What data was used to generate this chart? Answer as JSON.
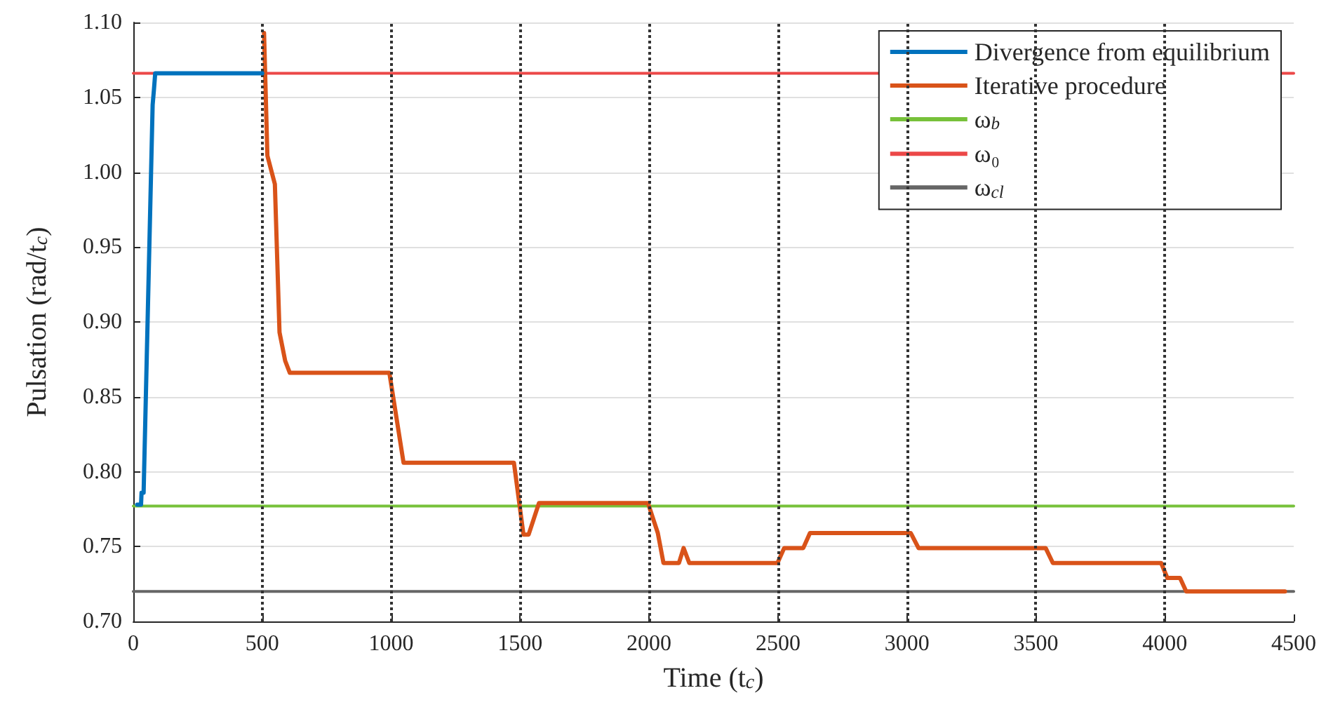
{
  "chart_data": {
    "type": "line",
    "xlabel": "Time (t$_{c}$)",
    "ylabel": "Pulsation (rad/t$_{c}$)",
    "xlim": [
      0,
      4500
    ],
    "xticks": [
      0,
      500,
      1000,
      1500,
      2000,
      2500,
      3000,
      3500,
      4000,
      4500
    ],
    "ylim": [
      0.7,
      1.1
    ],
    "yticks": [
      {
        "value": 0.7,
        "label": "0.70"
      },
      {
        "value": 0.75,
        "label": "0.75"
      },
      {
        "value": 0.8,
        "label": "0.80"
      },
      {
        "value": 0.85,
        "label": "0.85"
      },
      {
        "value": 0.9,
        "label": "0.90"
      },
      {
        "value": 0.95,
        "label": "0.95"
      },
      {
        "value": 1.0,
        "label": "1.00"
      },
      {
        "value": 1.05,
        "label": "1.05"
      },
      {
        "value": 1.1,
        "label": "1.10"
      }
    ],
    "grid": "y",
    "legend": "top right",
    "marker": "none",
    "line_style": "solid",
    "series": [
      {
        "name": "Divergence from equilibrium",
        "color": "#0072bd",
        "x": [
          15,
          30,
          32,
          40,
          75,
          80,
          85,
          500
        ],
        "values": [
          0.778,
          0.778,
          0.786,
          0.786,
          1.045,
          1.055,
          1.066,
          1.066
        ]
      },
      {
        "name": "Iterative procedure",
        "color": "#d95319",
        "x": [
          507,
          520,
          549,
          567,
          589,
          607,
          993,
          1048,
          1476,
          1513,
          1533,
          1573,
          1996,
          2034,
          2056,
          2116,
          2134,
          2156,
          2498,
          2524,
          2598,
          2624,
          3015,
          3045,
          3538,
          3566,
          3986,
          4010,
          4059,
          4083,
          4466
        ],
        "values": [
          1.093,
          1.011,
          0.992,
          0.893,
          0.874,
          0.866,
          0.866,
          0.806,
          0.806,
          0.758,
          0.758,
          0.779,
          0.779,
          0.759,
          0.739,
          0.739,
          0.749,
          0.739,
          0.739,
          0.749,
          0.749,
          0.759,
          0.759,
          0.749,
          0.749,
          0.739,
          0.739,
          0.729,
          0.729,
          0.72,
          0.72
        ]
      },
      {
        "name": "ω$_{b}$",
        "color": "#77c13a",
        "x": [
          0,
          4500
        ],
        "values": [
          0.777,
          0.777
        ]
      },
      {
        "name": "ω₀",
        "color": "#ec4848",
        "x": [
          0,
          4500
        ],
        "values": [
          1.066,
          1.066
        ]
      },
      {
        "name": "ω$_{cl}$",
        "color": "#666666",
        "x": [
          0,
          4500
        ],
        "values": [
          0.72,
          0.72
        ]
      }
    ],
    "ref_lines": [
      {
        "axis": "x",
        "value": 500,
        "color": "#333333",
        "line_style": "dotted"
      },
      {
        "axis": "x",
        "value": 1000,
        "color": "#333333",
        "line_style": "dotted"
      },
      {
        "axis": "x",
        "value": 1500,
        "color": "#333333",
        "line_style": "dotted"
      },
      {
        "axis": "x",
        "value": 2000,
        "color": "#333333",
        "line_style": "dotted"
      },
      {
        "axis": "x",
        "value": 2500,
        "color": "#333333",
        "line_style": "dotted"
      },
      {
        "axis": "x",
        "value": 3000,
        "color": "#333333",
        "line_style": "dotted"
      },
      {
        "axis": "x",
        "value": 3500,
        "color": "#333333",
        "line_style": "dotted"
      },
      {
        "axis": "x",
        "value": 4000,
        "color": "#333333",
        "line_style": "dotted"
      }
    ]
  }
}
